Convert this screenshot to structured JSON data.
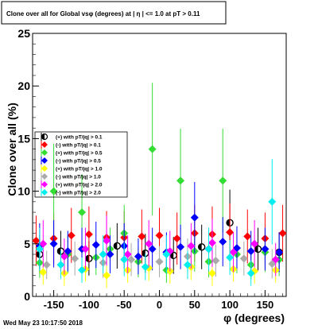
{
  "chart_data": {
    "type": "scatter",
    "title": "Clone  over all for Global vsφ (degrees) at | η | <= 1.0 at pT > 0.11",
    "xlabel": "φ (degrees)",
    "ylabel": "Clone  over all (%)",
    "xlim": [
      -180,
      180
    ],
    "ylim": [
      0,
      25
    ],
    "x_ticks": [
      -150,
      -100,
      -50,
      0,
      50,
      100,
      150
    ],
    "y_ticks": [
      0,
      5,
      10,
      15,
      20,
      25
    ],
    "grid": false,
    "legend_position": "upper-left",
    "series": [
      {
        "name": "(+) with pT/|q| > 0.1",
        "color": "#000000",
        "marker": "circle-half",
        "x": [
          -170,
          -140,
          -100,
          -60,
          -20,
          20,
          60,
          100,
          140,
          170
        ],
        "y": [
          4.0,
          4.3,
          3.6,
          4.8,
          4.1,
          3.9,
          4.7,
          7.0,
          4.5,
          4.2
        ]
      },
      {
        "name": "(-) with pT/|q| > 0.1",
        "color": "#ff0000",
        "marker": "diamond",
        "x": [
          -175,
          -150,
          -125,
          -100,
          -75,
          -50,
          -25,
          0,
          25,
          50,
          75,
          100,
          125,
          150,
          175
        ],
        "y": [
          5.3,
          5.5,
          5.8,
          5.9,
          5.6,
          5.6,
          5.7,
          5.8,
          5.5,
          6.0,
          5.9,
          6.1,
          5.7,
          5.5,
          6.0
        ]
      },
      {
        "name": "(+) with pT/|q| > 0.5",
        "color": "#33dd33",
        "marker": "diamond",
        "x": [
          -170,
          -150,
          -130,
          -110,
          -90,
          -70,
          -50,
          -30,
          -10,
          10,
          30,
          50,
          70,
          90,
          110,
          130,
          150,
          170
        ],
        "y": [
          3.2,
          10.0,
          4.0,
          8.0,
          3.7,
          4.5,
          6.0,
          3.3,
          14.0,
          2.5,
          11.0,
          4.3,
          3.3,
          11.0,
          4.0,
          3.0,
          4.2,
          3.5
        ]
      },
      {
        "name": "(-) with pT/|q| > 0.5",
        "color": "#0000ff",
        "marker": "diamond",
        "x": [
          -170,
          -150,
          -130,
          -110,
          -90,
          -70,
          -50,
          -30,
          -10,
          10,
          30,
          50,
          70,
          90,
          110,
          130,
          150,
          170
        ],
        "y": [
          4.8,
          5.0,
          4.3,
          4.5,
          4.9,
          4.0,
          4.8,
          3.8,
          4.5,
          4.2,
          4.7,
          7.5,
          4.5,
          5.2,
          4.6,
          4.3,
          4.5,
          4.2
        ]
      },
      {
        "name": "(+) with pT/|q| > 1.0",
        "color": "#ffff00",
        "marker": "diamond",
        "x": [
          -165,
          -135,
          -105,
          -75,
          -45,
          -15,
          15,
          45,
          75,
          105,
          135,
          165
        ],
        "y": [
          2.3,
          2.2,
          2.6,
          2.0,
          2.5,
          2.7,
          2.4,
          2.8,
          2.2,
          2.6,
          2.4,
          2.5
        ]
      },
      {
        "name": "(-) with pT/|q| > 1.0",
        "color": "#aaaaaa",
        "marker": "diamond",
        "x": [
          -160,
          -120,
          -80,
          -40,
          0,
          40,
          80,
          120,
          160
        ],
        "y": [
          3.0,
          3.6,
          3.2,
          3.5,
          3.3,
          3.8,
          3.4,
          3.6,
          3.1
        ]
      },
      {
        "name": "(+) with pT/|q| > 2.0",
        "color": "#ff00ff",
        "marker": "diamond",
        "x": [
          -165,
          -135,
          -105,
          -75,
          -45,
          -15,
          15,
          45,
          75,
          105,
          135,
          165
        ],
        "y": [
          5.0,
          3.8,
          4.5,
          5.3,
          4.0,
          5.0,
          4.3,
          4.8,
          5.1,
          4.2,
          5.0,
          3.5
        ]
      },
      {
        "name": "(-) with pT/|q| > 2.0",
        "color": "#00eeee",
        "marker": "diamond",
        "x": [
          -170,
          -140,
          -110,
          -80,
          -50,
          -20,
          10,
          40,
          70,
          100,
          130,
          160
        ],
        "y": [
          4.5,
          3.0,
          2.5,
          4.0,
          3.5,
          2.8,
          4.0,
          3.0,
          4.5,
          3.7,
          2.2,
          9.0
        ]
      }
    ]
  },
  "footer": {
    "timestamp": "Wed May 23 10:17:50 2018"
  }
}
